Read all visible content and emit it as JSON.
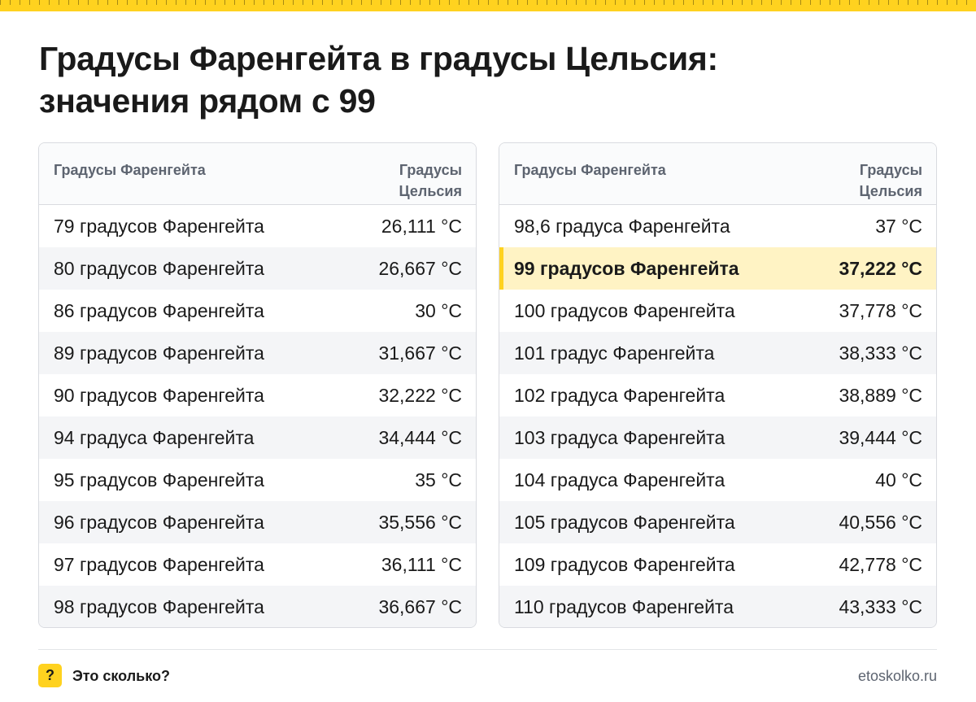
{
  "title_line1": "Градусы Фаренгейта в градусы Цельсия:",
  "title_line2": "значения рядом с 99",
  "headers": {
    "fahrenheit": "Градусы Фаренгейта",
    "celsius_line1": "Градусы",
    "celsius_line2": "Цельсия"
  },
  "left_rows": [
    {
      "label": "79 градусов Фаренгейта",
      "value": "26,111 °C"
    },
    {
      "label": "80 градусов Фаренгейта",
      "value": "26,667 °C"
    },
    {
      "label": "86 градусов Фаренгейта",
      "value": "30 °C"
    },
    {
      "label": "89 градусов Фаренгейта",
      "value": "31,667 °C"
    },
    {
      "label": "90 градусов Фаренгейта",
      "value": "32,222 °C"
    },
    {
      "label": "94 градуса Фаренгейта",
      "value": "34,444 °C"
    },
    {
      "label": "95 градусов Фаренгейта",
      "value": "35 °C"
    },
    {
      "label": "96 градусов Фаренгейта",
      "value": "35,556 °C"
    },
    {
      "label": "97 градусов Фаренгейта",
      "value": "36,111 °C"
    },
    {
      "label": "98 градусов Фаренгейта",
      "value": "36,667 °C"
    }
  ],
  "right_rows": [
    {
      "label": "98,6 градуса Фаренгейта",
      "value": "37 °C"
    },
    {
      "label": "99 градусов Фаренгейта",
      "value": "37,222 °C",
      "highlight": true
    },
    {
      "label": "100 градусов Фаренгейта",
      "value": "37,778 °C"
    },
    {
      "label": "101 градус Фаренгейта",
      "value": "38,333 °C"
    },
    {
      "label": "102 градуса Фаренгейта",
      "value": "38,889 °C"
    },
    {
      "label": "103 градуса Фаренгейта",
      "value": "39,444 °C"
    },
    {
      "label": "104 градуса Фаренгейта",
      "value": "40 °C"
    },
    {
      "label": "105 градусов Фаренгейта",
      "value": "40,556 °C"
    },
    {
      "label": "109 градусов Фаренгейта",
      "value": "42,778 °C"
    },
    {
      "label": "110 градусов Фаренгейта",
      "value": "43,333 °C"
    }
  ],
  "footer": {
    "badge": "?",
    "brand": "Это сколько?",
    "site": "etoskolko.ru"
  },
  "colors": {
    "accent": "#ffd21f",
    "highlight_bg": "#fff3c4",
    "header_text": "#5d6470",
    "alt_row": "#f4f5f7"
  }
}
